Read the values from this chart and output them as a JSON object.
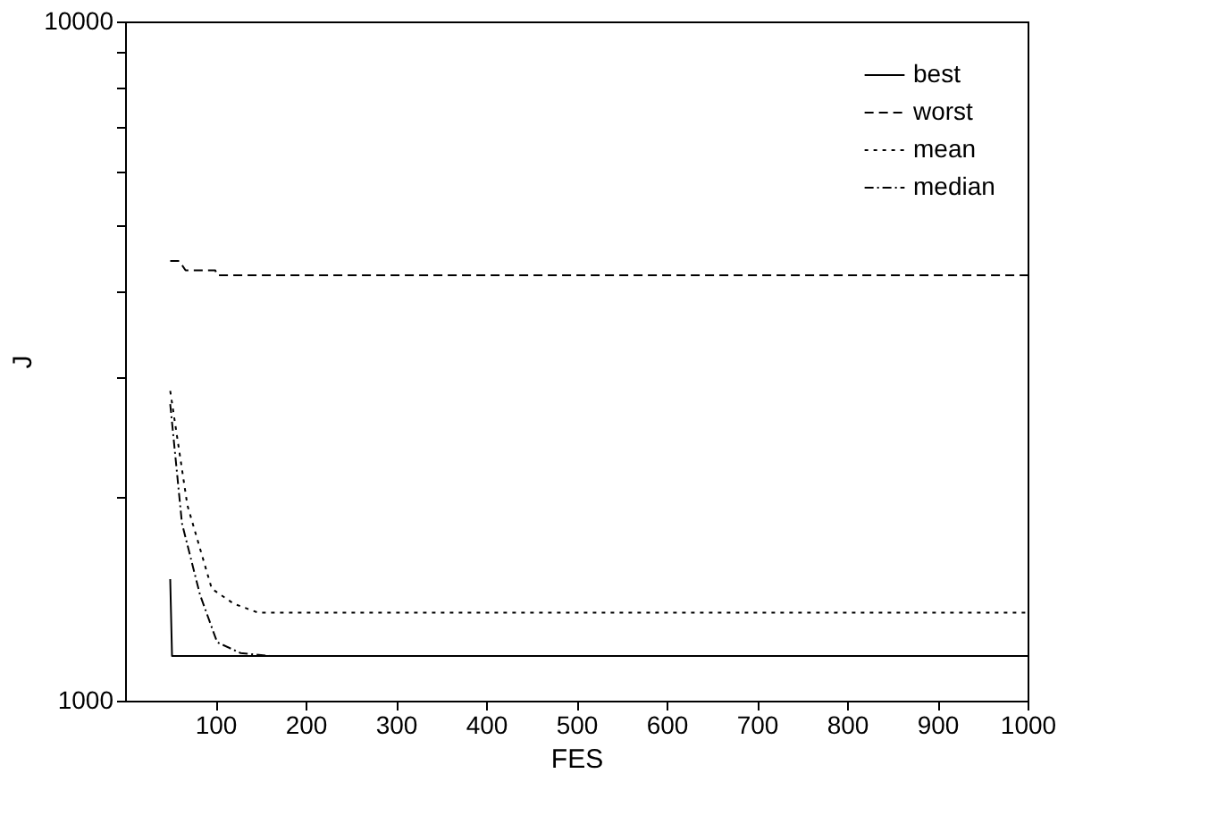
{
  "chart_data": {
    "type": "line",
    "xlabel": "FES",
    "ylabel": "J",
    "xlim": [
      0,
      1000
    ],
    "xticks": [
      100,
      200,
      300,
      400,
      500,
      600,
      700,
      800,
      900,
      1000
    ],
    "ylim": [
      1000,
      10000
    ],
    "log": true,
    "yticks": [
      1000,
      {
        "value": 2000,
        "label": null
      },
      {
        "value": 3000,
        "label": null
      },
      {
        "value": 4000,
        "label": null
      },
      {
        "value": 5000,
        "label": null
      },
      {
        "value": 6000,
        "label": null
      },
      {
        "value": 7000,
        "label": null
      },
      {
        "value": 8000,
        "label": null
      },
      {
        "value": 9000,
        "label": null
      },
      10000
    ],
    "grid": false,
    "legend": "top right",
    "marker": "none",
    "series": [
      {
        "name": "best",
        "color": "#000000",
        "line_style": "solid",
        "x": [
          50,
          52,
          1000
        ],
        "values": [
          1510,
          1164,
          1164
        ]
      },
      {
        "name": "worst",
        "color": "#000000",
        "line_style": "dashed",
        "x": [
          50,
          60,
          67,
          100,
          102,
          1000
        ],
        "values": [
          4440,
          4440,
          4300,
          4300,
          4230,
          4230
        ]
      },
      {
        "name": "mean",
        "color": "#000000",
        "line_style": "dotted",
        "x": [
          50,
          69,
          96,
          120,
          147,
          1000
        ],
        "values": [
          2858,
          1940,
          1462,
          1390,
          1348,
          1348
        ]
      },
      {
        "name": "median",
        "color": "#000000",
        "line_style": "dashdot",
        "x": [
          50,
          63,
          83,
          102,
          128,
          160,
          1000
        ],
        "values": [
          2734,
          1825,
          1432,
          1219,
          1175,
          1164,
          1164
        ]
      }
    ]
  }
}
